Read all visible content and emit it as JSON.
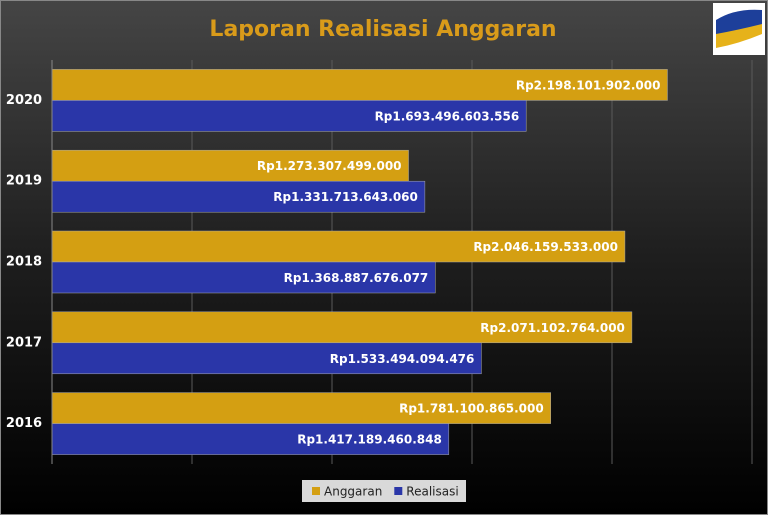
{
  "chart_data": {
    "type": "hbar",
    "title": "Laporan Realisasi Anggaran",
    "categories": [
      "2020",
      "2019",
      "2018",
      "2017",
      "2016"
    ],
    "series": [
      {
        "name": "Anggaran",
        "color": "#d49f12",
        "values": [
          2198101902000,
          1273307499000,
          2046159533000,
          2071102764000,
          1781100865000
        ],
        "value_labels": [
          "Rp2.198.101.902.000",
          "Rp1.273.307.499.000",
          "Rp2.046.159.533.000",
          "Rp2.071.102.764.000",
          "Rp1.781.100.865.000"
        ]
      },
      {
        "name": "Realisasi",
        "color": "#2a36a8",
        "values": [
          1693496603556,
          1331713643060,
          1368887676077,
          1533494094476,
          1417189460848
        ],
        "value_labels": [
          "Rp1.693.496.603.556",
          "Rp1.331.713.643.060",
          "Rp1.368.887.676.077",
          "Rp1.533.494.094.476",
          "Rp1.417.189.460.848"
        ]
      }
    ],
    "xlim": [
      0,
      2500000000000
    ],
    "xticks": [
      0,
      500000000000,
      1000000000000,
      1500000000000,
      2000000000000,
      2500000000000
    ],
    "grid": true,
    "legend": "bottom"
  }
}
